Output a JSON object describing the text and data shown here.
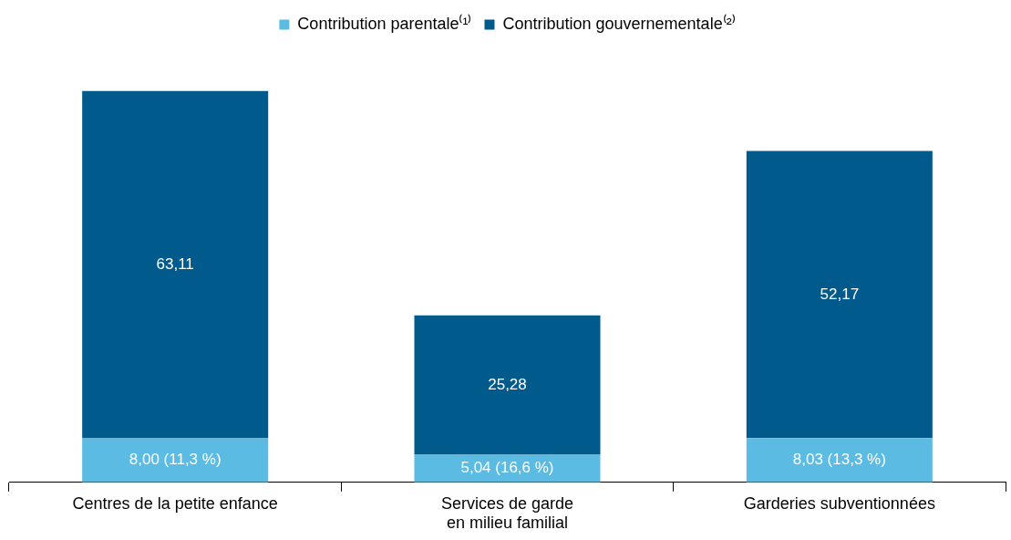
{
  "chart_data": {
    "type": "bar",
    "stacked": true,
    "legend": "top",
    "grid": false,
    "tick_labels": "x",
    "categories": [
      "Centres de la petite enfance",
      "Services de garde\nen milieu familial",
      "Garderies subventionnées"
    ],
    "series": [
      {
        "name": "Contribution parentale⁽¹⁾",
        "color": "#5bbbe3",
        "values": [
          8.0,
          5.04,
          8.03
        ],
        "value_labels": [
          "8,00 (11,3 %)",
          "5,04 (16,6 %)",
          "8,03 (13,3 %)"
        ]
      },
      {
        "name": "Contribution gouvernementale⁽²⁾",
        "color": "#005a8c",
        "values": [
          63.11,
          25.28,
          52.17
        ],
        "value_labels": [
          "63,11",
          "25,28",
          "52,17"
        ]
      }
    ]
  }
}
